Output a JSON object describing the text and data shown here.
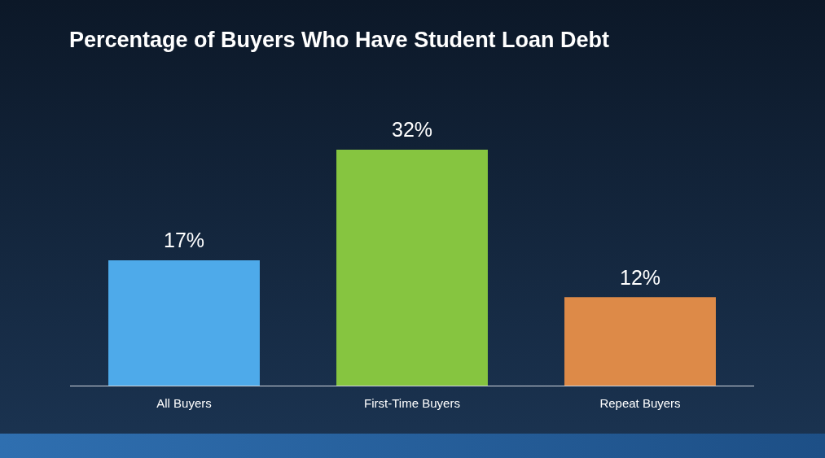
{
  "chart_data": {
    "type": "bar",
    "title": "Percentage of Buyers Who Have Student Loan Debt",
    "categories": [
      "All Buyers",
      "First-Time Buyers",
      "Repeat Buyers"
    ],
    "values": [
      17,
      32,
      12
    ],
    "colors": [
      "#4eaaea",
      "#86c540",
      "#dd8a48"
    ],
    "value_labels": [
      "17%",
      "32%",
      "12%"
    ],
    "legend": false,
    "grid": false
  }
}
